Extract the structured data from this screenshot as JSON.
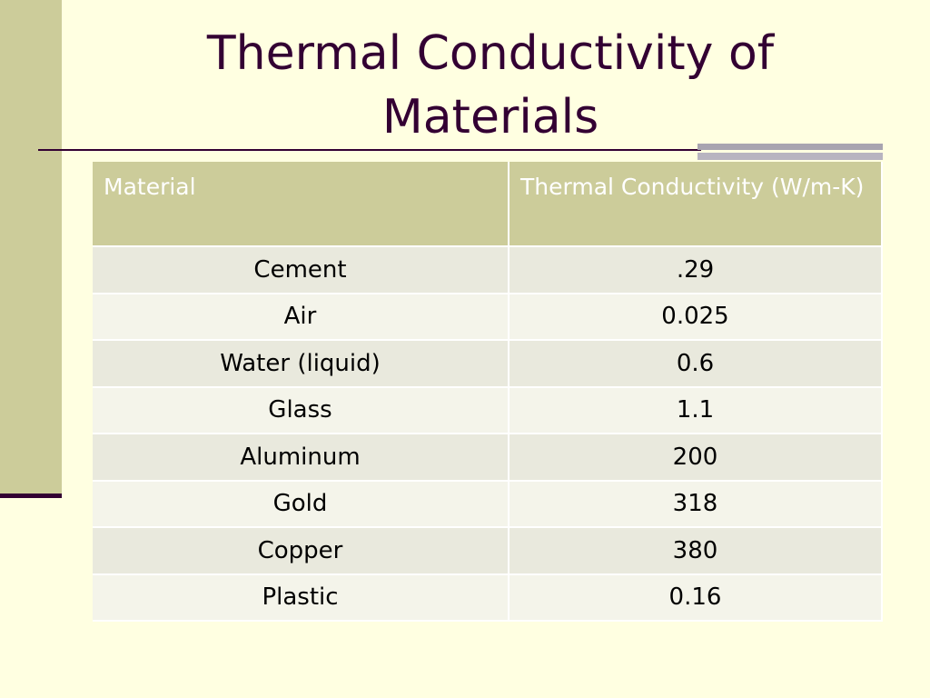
{
  "header": {
    "title": "Thermal Conductivity of Materials"
  },
  "table": {
    "columns": [
      "Material",
      "Thermal Conductivity (W/m-K)"
    ],
    "rows": [
      [
        "Cement",
        ".29"
      ],
      [
        "Air",
        "0.025"
      ],
      [
        "Water (liquid)",
        "0.6"
      ],
      [
        "Glass",
        "1.1"
      ],
      [
        "Aluminum",
        "200"
      ],
      [
        "Gold",
        "318"
      ],
      [
        "Copper",
        "380"
      ],
      [
        "Plastic",
        "0.16"
      ]
    ]
  }
}
